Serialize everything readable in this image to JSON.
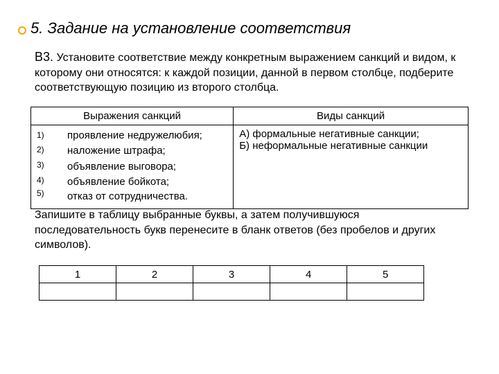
{
  "title": "5. Задание на установление соответствия",
  "question": {
    "lead": "В3.",
    "body": "Установите соответствие между конкретным выражением санкций и видом, к которому они относятся: к каждой позиции, данной в первом столбце, подберите соответствующую позицию из второго столбца."
  },
  "table": {
    "headers": {
      "left": "Выражения санкций",
      "right": "Виды санкций"
    },
    "left_items": [
      "проявление недружелюбия;",
      "наложение штрафа;",
      "объявление выговора;",
      "объявление бойкота;",
      "отказ от сотрудничества."
    ],
    "left_nums": [
      "1)",
      "2)",
      "3)",
      "4)",
      "5)"
    ],
    "right_text": "А) формальные негативные санкции;\nБ) неформальные негативные санкции"
  },
  "instruction": "Запишите в таблицу выбранные буквы, а затем получившуюся последовательность букв перенесите в бланк ответов (без пробелов и других символов).",
  "answer_cols": [
    "1",
    "2",
    "3",
    "4",
    "5"
  ],
  "colors": {
    "bullet_border": "#f7a600",
    "text": "#000000",
    "background": "#ffffff",
    "table_border": "#000000"
  }
}
